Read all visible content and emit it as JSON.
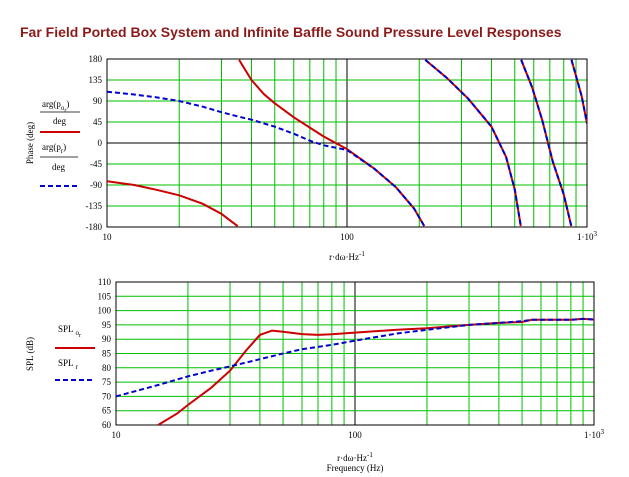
{
  "title": "Far Field Ported Box System and Infinite Baffle Sound Pressure Level Responses",
  "colors": {
    "red": "#cc0000",
    "blue": "#0000cc",
    "grid": "#00c000",
    "axis": "#000000"
  },
  "chart_data": [
    {
      "type": "line",
      "name": "phase-chart",
      "ylabel": "Phase (deg)",
      "xlabel_text": "r·dω·Hz",
      "xlabel_sup": "-1",
      "xscale": "log",
      "xlim": [
        10,
        1000
      ],
      "ylim": [
        -180,
        180
      ],
      "x_ticks": [
        {
          "v": 10,
          "t": "10"
        },
        {
          "v": 100,
          "t": "100"
        },
        {
          "v": 1000,
          "t": "1·10",
          "sup": "3"
        }
      ],
      "y_ticks": [
        180,
        135,
        90,
        45,
        0,
        -45,
        -90,
        -135,
        -180
      ],
      "grid": true,
      "legend": {
        "red_num": "arg(p",
        "red_sub": "o",
        "red_sub2": "r",
        "red_close": ")",
        "red_den": "deg",
        "blue_num": "arg(p",
        "blue_sub": "r",
        "blue_close": ")",
        "blue_den": "deg"
      },
      "series": [
        {
          "color": "red",
          "dash": false,
          "segments": [
            [
              [
                10,
                -82
              ],
              [
                13,
                -90
              ],
              [
                16,
                -100
              ],
              [
                20,
                -112
              ],
              [
                25,
                -130
              ],
              [
                30,
                -152
              ],
              [
                33,
                -168
              ],
              [
                35,
                -178
              ]
            ],
            [
              [
                35.5,
                178
              ],
              [
                40,
                135
              ],
              [
                45,
                105
              ],
              [
                50,
                85
              ],
              [
                60,
                55
              ],
              [
                70,
                33
              ],
              [
                80,
                14
              ],
              [
                100,
                -13
              ],
              [
                130,
                -55
              ],
              [
                160,
                -95
              ],
              [
                190,
                -140
              ],
              [
                210,
                -178
              ]
            ],
            [
              [
                212,
                178
              ],
              [
                260,
                140
              ],
              [
                320,
                95
              ],
              [
                400,
                35
              ],
              [
                460,
                -30
              ],
              [
                500,
                -100
              ],
              [
                530,
                -178
              ]
            ],
            [
              [
                532,
                178
              ],
              [
                590,
                120
              ],
              [
                650,
                50
              ],
              [
                720,
                -40
              ],
              [
                800,
                -110
              ],
              [
                860,
                -178
              ]
            ],
            [
              [
                862,
                178
              ],
              [
                950,
                100
              ],
              [
                1000,
                42
              ]
            ]
          ]
        },
        {
          "color": "blue",
          "dash": true,
          "segments": [
            [
              [
                10,
                110
              ],
              [
                13,
                104
              ],
              [
                16,
                98
              ],
              [
                20,
                90
              ],
              [
                25,
                78
              ],
              [
                30,
                66
              ],
              [
                35,
                57
              ],
              [
                40,
                50
              ],
              [
                50,
                35
              ],
              [
                60,
                20
              ],
              [
                70,
                5
              ],
              [
                80,
                -5
              ],
              [
                100,
                -15
              ],
              [
                130,
                -55
              ],
              [
                160,
                -95
              ],
              [
                190,
                -140
              ],
              [
                210,
                -178
              ]
            ],
            [
              [
                212,
                178
              ],
              [
                260,
                140
              ],
              [
                320,
                95
              ],
              [
                400,
                35
              ],
              [
                460,
                -30
              ],
              [
                500,
                -100
              ],
              [
                530,
                -178
              ]
            ],
            [
              [
                532,
                178
              ],
              [
                590,
                120
              ],
              [
                650,
                50
              ],
              [
                720,
                -40
              ],
              [
                800,
                -110
              ],
              [
                860,
                -178
              ]
            ],
            [
              [
                862,
                178
              ],
              [
                950,
                100
              ],
              [
                1000,
                42
              ]
            ]
          ]
        }
      ]
    },
    {
      "type": "line",
      "name": "spl-chart",
      "ylabel": "SPL (dB)",
      "xlabel_text": "r·dω·Hz",
      "xlabel_sup": "-1",
      "xlabel2": "Frequency (Hz)",
      "xscale": "log",
      "xlim": [
        10,
        1000
      ],
      "ylim": [
        60,
        110
      ],
      "x_ticks": [
        {
          "v": 10,
          "t": "10"
        },
        {
          "v": 100,
          "t": "100"
        },
        {
          "v": 1000,
          "t": "1·10",
          "sup": "3"
        }
      ],
      "y_ticks": [
        110,
        105,
        100,
        95,
        90,
        85,
        80,
        75,
        70,
        65,
        60
      ],
      "grid": true,
      "legend": {
        "red_main": "SPL",
        "red_sub": "o",
        "red_sub2": "r",
        "blue_main": "SPL",
        "blue_sub": "r"
      },
      "series": [
        {
          "color": "red",
          "dash": false,
          "segments": [
            [
              [
                15,
                60
              ],
              [
                18,
                64
              ],
              [
                20,
                67
              ],
              [
                25,
                73
              ],
              [
                30,
                79
              ],
              [
                35,
                86
              ],
              [
                40,
                91.5
              ],
              [
                45,
                93
              ],
              [
                50,
                92.6
              ],
              [
                60,
                91.8
              ],
              [
                70,
                91.5
              ],
              [
                80,
                91.7
              ],
              [
                100,
                92.3
              ],
              [
                150,
                93.3
              ],
              [
                200,
                93.8
              ],
              [
                300,
                95
              ],
              [
                400,
                95.7
              ],
              [
                500,
                96
              ],
              [
                550,
                96.8
              ],
              [
                700,
                96.8
              ],
              [
                800,
                96.8
              ],
              [
                900,
                97.1
              ],
              [
                1000,
                96.9
              ]
            ]
          ]
        },
        {
          "color": "blue",
          "dash": true,
          "segments": [
            [
              [
                10,
                70
              ],
              [
                15,
                74
              ],
              [
                20,
                77
              ],
              [
                25,
                79
              ],
              [
                30,
                80.5
              ],
              [
                40,
                83
              ],
              [
                50,
                85
              ],
              [
                60,
                86.5
              ],
              [
                80,
                88
              ],
              [
                100,
                89.5
              ],
              [
                150,
                92
              ],
              [
                200,
                93.3
              ],
              [
                300,
                95
              ],
              [
                400,
                95.7
              ],
              [
                500,
                96.3
              ],
              [
                550,
                96.8
              ],
              [
                700,
                96.8
              ],
              [
                800,
                96.8
              ],
              [
                900,
                97.1
              ],
              [
                1000,
                96.9
              ]
            ]
          ]
        }
      ]
    }
  ]
}
